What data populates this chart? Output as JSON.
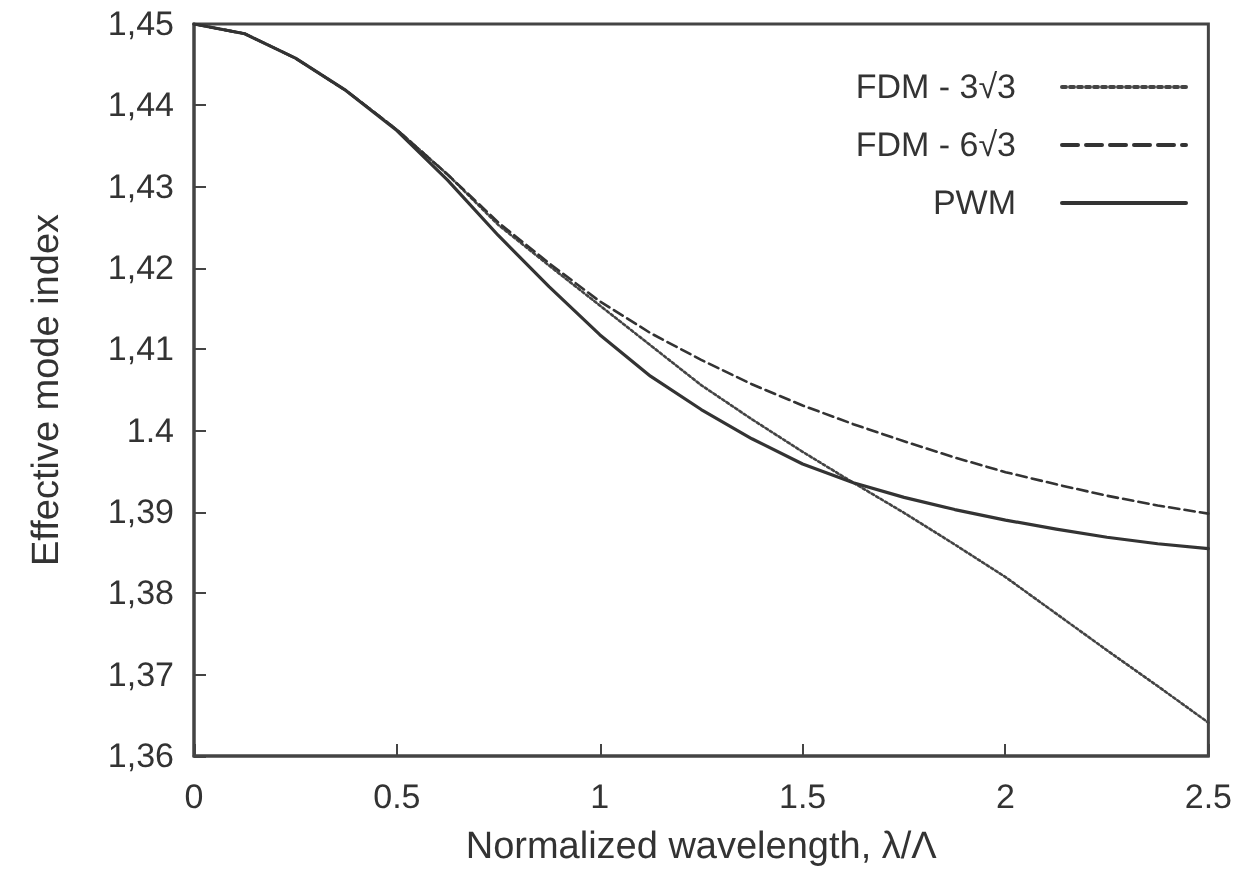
{
  "chart_data": {
    "type": "line",
    "xlabel": "Normalized wavelength, λ/Λ",
    "ylabel": "Effective mode index",
    "x": [
      0,
      0.125,
      0.25,
      0.375,
      0.5,
      0.625,
      0.75,
      0.875,
      1.0,
      1.125,
      1.25,
      1.375,
      1.5,
      1.625,
      1.75,
      1.875,
      2.0,
      2.125,
      2.25,
      2.375,
      2.5
    ],
    "series": [
      {
        "name": "FDM - 3√3",
        "color": "#444444",
        "line_style": "dotted",
        "values": [
          1.45,
          1.4488,
          1.4458,
          1.4418,
          1.437,
          1.4315,
          1.4253,
          1.4203,
          1.4154,
          1.4105,
          1.4056,
          1.4014,
          1.3974,
          1.3936,
          1.3899,
          1.386,
          1.382,
          1.3775,
          1.373,
          1.3686,
          1.3641
        ]
      },
      {
        "name": "FDM - 6√3",
        "color": "#333333",
        "line_style": "dashed",
        "values": [
          1.45,
          1.4488,
          1.4458,
          1.4418,
          1.437,
          1.4315,
          1.4256,
          1.4206,
          1.4159,
          1.412,
          1.4087,
          1.4057,
          1.4031,
          1.4008,
          1.3987,
          1.3967,
          1.3949,
          1.3934,
          1.392,
          1.3908,
          1.3898
        ]
      },
      {
        "name": "PWM",
        "color": "#333333",
        "line_style": "solid",
        "values": [
          1.45,
          1.4488,
          1.4458,
          1.4418,
          1.4369,
          1.4308,
          1.424,
          1.4177,
          1.4118,
          1.4067,
          1.4026,
          1.399,
          1.3959,
          1.3936,
          1.3918,
          1.3903,
          1.389,
          1.3879,
          1.3869,
          1.3861,
          1.3855
        ]
      }
    ],
    "xlim": [
      0,
      2.5
    ],
    "xticks": [
      0,
      0.5,
      1,
      1.5,
      2,
      2.5
    ],
    "ylim": [
      1.36,
      1.45
    ],
    "yticks": [
      {
        "value": 1.36,
        "label": "1,36"
      },
      {
        "value": 1.37,
        "label": "1,37"
      },
      {
        "value": 1.38,
        "label": "1,38"
      },
      {
        "value": 1.39,
        "label": "1,39"
      },
      {
        "value": 1.4,
        "label": "1.4"
      },
      {
        "value": 1.41,
        "label": "1,41"
      },
      {
        "value": 1.42,
        "label": "1,42"
      },
      {
        "value": 1.43,
        "label": "1,43"
      },
      {
        "value": 1.44,
        "label": "1,44"
      },
      {
        "value": 1.45,
        "label": "1,45"
      }
    ],
    "grid": false,
    "legend": "top right",
    "marker": "none"
  }
}
